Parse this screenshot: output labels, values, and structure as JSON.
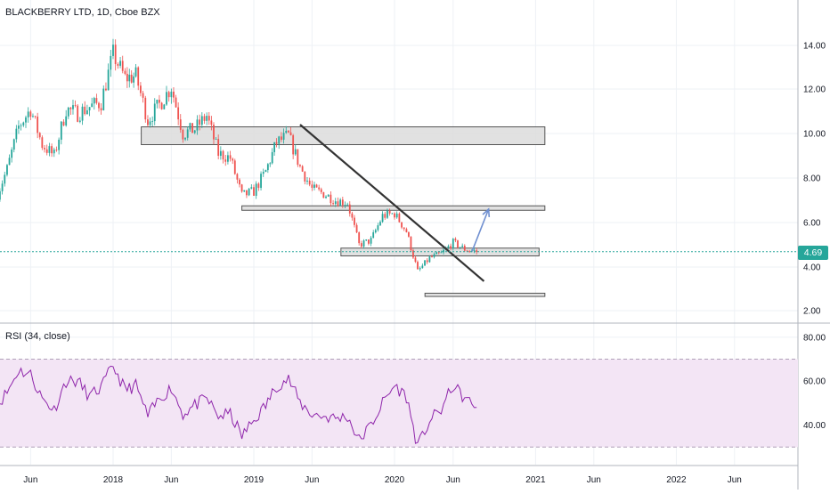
{
  "header": {
    "title": "BLACKBERRY LTD, 1D, Cboe BZX"
  },
  "last_price": {
    "label": "4.69",
    "value": 4.69,
    "color": "#26a69a"
  },
  "colors": {
    "up": "#26a69a",
    "down": "#ef5350",
    "zone_fill": "#dcdcdc",
    "zone_stroke": "#555555",
    "trendline": "#333333",
    "arrow": "#6f8fd0",
    "rsi_line": "#8e24aa",
    "rsi_band": "#f3e5f5",
    "grid": "#eef1f6"
  },
  "chart_data": [
    {
      "type": "candlestick",
      "title": "BLACKBERRY LTD, 1D, Cboe BZX",
      "xlabel": "",
      "ylabel": "",
      "x_ticks": [
        "Jun",
        "2018",
        "Jun",
        "2019",
        "Jun",
        "2020",
        "Jun",
        "2021",
        "Jun",
        "2022",
        "Jun"
      ],
      "x_tick_dates": [
        "2017-06-01",
        "2018-01-01",
        "2018-06-01",
        "2019-01-01",
        "2019-06-01",
        "2020-01-01",
        "2020-06-01",
        "2021-01-01",
        "2021-06-01",
        "2022-01-01",
        "2022-06-01"
      ],
      "y_ticks": [
        "2.00",
        "4.00",
        "6.00",
        "8.00",
        "10.00",
        "12.00",
        "14.00"
      ],
      "y_tick_values": [
        2,
        4,
        6,
        8,
        10,
        12,
        14
      ],
      "ylim": [
        1.4,
        15.6
      ],
      "grid": true,
      "last_value": 4.69,
      "series": [
        {
          "values_close": [
            {
              "date": "2017-03-01",
              "close": 7.0
            },
            {
              "date": "2017-04-01",
              "close": 8.4
            },
            {
              "date": "2017-05-01",
              "close": 10.3
            },
            {
              "date": "2017-06-01",
              "close": 11.1
            },
            {
              "date": "2017-07-01",
              "close": 9.5
            },
            {
              "date": "2017-08-01",
              "close": 9.0
            },
            {
              "date": "2017-09-01",
              "close": 11.1
            },
            {
              "date": "2017-10-01",
              "close": 10.9
            },
            {
              "date": "2017-11-01",
              "close": 11.2
            },
            {
              "date": "2017-12-01",
              "close": 11.4
            },
            {
              "date": "2018-01-01",
              "close": 13.6
            },
            {
              "date": "2018-02-01",
              "close": 12.5
            },
            {
              "date": "2018-03-01",
              "close": 12.6
            },
            {
              "date": "2018-04-01",
              "close": 10.6
            },
            {
              "date": "2018-05-01",
              "close": 11.3
            },
            {
              "date": "2018-06-01",
              "close": 12.1
            },
            {
              "date": "2018-07-01",
              "close": 10.0
            },
            {
              "date": "2018-08-01",
              "close": 10.2
            },
            {
              "date": "2018-09-01",
              "close": 10.8
            },
            {
              "date": "2018-10-01",
              "close": 9.1
            },
            {
              "date": "2018-11-01",
              "close": 8.9
            },
            {
              "date": "2018-12-01",
              "close": 7.2
            },
            {
              "date": "2019-01-01",
              "close": 7.4
            },
            {
              "date": "2019-02-01",
              "close": 8.3
            },
            {
              "date": "2019-03-01",
              "close": 9.6
            },
            {
              "date": "2019-04-01",
              "close": 9.9
            },
            {
              "date": "2019-05-01",
              "close": 8.5
            },
            {
              "date": "2019-06-01",
              "close": 7.5
            },
            {
              "date": "2019-07-01",
              "close": 7.3
            },
            {
              "date": "2019-08-01",
              "close": 7.0
            },
            {
              "date": "2019-09-01",
              "close": 6.9
            },
            {
              "date": "2019-10-01",
              "close": 5.0
            },
            {
              "date": "2019-11-01",
              "close": 5.2
            },
            {
              "date": "2019-12-01",
              "close": 6.3
            },
            {
              "date": "2020-01-01",
              "close": 6.4
            },
            {
              "date": "2020-02-01",
              "close": 5.6
            },
            {
              "date": "2020-03-01",
              "close": 3.8
            },
            {
              "date": "2020-04-01",
              "close": 4.4
            },
            {
              "date": "2020-05-01",
              "close": 4.6
            },
            {
              "date": "2020-06-01",
              "close": 5.1
            },
            {
              "date": "2020-07-01",
              "close": 4.8
            },
            {
              "date": "2020-08-01",
              "close": 4.69
            }
          ]
        }
      ],
      "annotations": {
        "zones": [
          {
            "from": "2018-03-15",
            "to": "2021-01-25",
            "low": 9.5,
            "high": 10.3
          },
          {
            "from": "2018-12-01",
            "to": "2021-01-25",
            "low": 6.55,
            "high": 6.75
          },
          {
            "from": "2019-08-15",
            "to": "2021-01-10",
            "low": 4.5,
            "high": 4.85
          },
          {
            "from": "2020-03-20",
            "to": "2021-01-25",
            "low": 2.65,
            "high": 2.8
          }
        ],
        "trendline": {
          "from": {
            "date": "2019-05-01",
            "value": 10.4
          },
          "to": {
            "date": "2020-08-20",
            "value": 3.35
          }
        },
        "arrow": {
          "from": {
            "date": "2020-07-20",
            "value": 4.7
          },
          "to": {
            "date": "2020-09-01",
            "value": 6.6
          }
        }
      }
    },
    {
      "type": "line",
      "title": "RSI (34, close)",
      "ylim": [
        22,
        86
      ],
      "y_ticks": [
        "40.00",
        "60.00",
        "80.00"
      ],
      "y_tick_values": [
        40,
        60,
        80
      ],
      "band": [
        30,
        70
      ],
      "series": [
        {
          "values": [
            {
              "date": "2017-03-01",
              "v": 48
            },
            {
              "date": "2017-04-01",
              "v": 55
            },
            {
              "date": "2017-05-01",
              "v": 65
            },
            {
              "date": "2017-06-01",
              "v": 63
            },
            {
              "date": "2017-07-01",
              "v": 52
            },
            {
              "date": "2017-08-01",
              "v": 47
            },
            {
              "date": "2017-09-01",
              "v": 60
            },
            {
              "date": "2017-10-01",
              "v": 60
            },
            {
              "date": "2017-11-01",
              "v": 53
            },
            {
              "date": "2017-12-01",
              "v": 57
            },
            {
              "date": "2018-01-01",
              "v": 67
            },
            {
              "date": "2018-02-01",
              "v": 56
            },
            {
              "date": "2018-03-01",
              "v": 58
            },
            {
              "date": "2018-04-01",
              "v": 44
            },
            {
              "date": "2018-05-01",
              "v": 52
            },
            {
              "date": "2018-06-01",
              "v": 57
            },
            {
              "date": "2018-07-01",
              "v": 45
            },
            {
              "date": "2018-08-01",
              "v": 49
            },
            {
              "date": "2018-09-01",
              "v": 52
            },
            {
              "date": "2018-10-01",
              "v": 44
            },
            {
              "date": "2018-11-01",
              "v": 45
            },
            {
              "date": "2018-12-01",
              "v": 35
            },
            {
              "date": "2019-01-01",
              "v": 42
            },
            {
              "date": "2019-02-01",
              "v": 49
            },
            {
              "date": "2019-03-01",
              "v": 58
            },
            {
              "date": "2019-04-01",
              "v": 61
            },
            {
              "date": "2019-05-01",
              "v": 50
            },
            {
              "date": "2019-06-01",
              "v": 45
            },
            {
              "date": "2019-07-01",
              "v": 44
            },
            {
              "date": "2019-08-01",
              "v": 43
            },
            {
              "date": "2019-09-01",
              "v": 44
            },
            {
              "date": "2019-10-01",
              "v": 33
            },
            {
              "date": "2019-11-01",
              "v": 40
            },
            {
              "date": "2019-12-01",
              "v": 50
            },
            {
              "date": "2020-01-01",
              "v": 58
            },
            {
              "date": "2020-02-01",
              "v": 53
            },
            {
              "date": "2020-03-01",
              "v": 30
            },
            {
              "date": "2020-04-01",
              "v": 42
            },
            {
              "date": "2020-05-01",
              "v": 47
            },
            {
              "date": "2020-06-01",
              "v": 58
            },
            {
              "date": "2020-07-01",
              "v": 52
            },
            {
              "date": "2020-08-01",
              "v": 48
            }
          ]
        }
      ]
    }
  ]
}
